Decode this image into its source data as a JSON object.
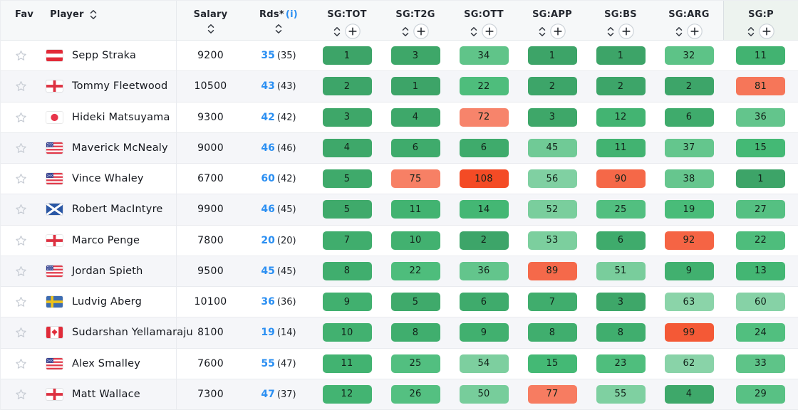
{
  "header": {
    "fav_label": "Fav",
    "player_label": "Player",
    "salary_label": "Salary",
    "rds_label": "Rds*",
    "rds_info": "(i)",
    "stat_columns": [
      "SG:TOT",
      "SG:T2G",
      "SG:OTT",
      "SG:APP",
      "SG:BS",
      "SG:ARG",
      "SG:P"
    ]
  },
  "icons": {
    "favorite": "star-outline",
    "sort": "up-down-chevrons",
    "add_column": "plus-circle",
    "info": "(i)-text-link"
  },
  "colors": {
    "link_blue": "#2b8ff2",
    "badge_green_dark": "#35aa63",
    "badge_green_light": "#8ed3ab",
    "badge_salmon": "#f98b76",
    "badge_red_strong": "#f44b26",
    "row_stripe": "#f5f6f9",
    "header_bg": "#f6f8f9",
    "last_header_tint": "#edf3ef"
  },
  "rows": [
    {
      "player": "Sepp Straka",
      "country": "austria",
      "salary": "9200",
      "rds": "35",
      "rds_alt": "(35)",
      "stats": [
        1,
        3,
        34,
        1,
        1,
        32,
        11
      ]
    },
    {
      "player": "Tommy Fleetwood",
      "country": "england",
      "salary": "10500",
      "rds": "43",
      "rds_alt": "(43)",
      "stats": [
        2,
        1,
        22,
        2,
        2,
        2,
        81
      ]
    },
    {
      "player": "Hideki Matsuyama",
      "country": "japan",
      "salary": "9300",
      "rds": "42",
      "rds_alt": "(42)",
      "stats": [
        3,
        4,
        72,
        3,
        12,
        6,
        36
      ]
    },
    {
      "player": "Maverick McNealy",
      "country": "usa",
      "salary": "9000",
      "rds": "46",
      "rds_alt": "(46)",
      "stats": [
        4,
        6,
        6,
        45,
        11,
        37,
        15
      ]
    },
    {
      "player": "Vince Whaley",
      "country": "usa",
      "salary": "6700",
      "rds": "60",
      "rds_alt": "(42)",
      "stats": [
        5,
        75,
        108,
        56,
        90,
        38,
        1
      ]
    },
    {
      "player": "Robert MacIntyre",
      "country": "scotland",
      "salary": "9900",
      "rds": "46",
      "rds_alt": "(45)",
      "stats": [
        5,
        11,
        14,
        52,
        25,
        19,
        27
      ]
    },
    {
      "player": "Marco Penge",
      "country": "england",
      "salary": "7800",
      "rds": "20",
      "rds_alt": "(20)",
      "stats": [
        7,
        10,
        2,
        53,
        6,
        92,
        22
      ]
    },
    {
      "player": "Jordan Spieth",
      "country": "usa",
      "salary": "9500",
      "rds": "45",
      "rds_alt": "(45)",
      "stats": [
        8,
        22,
        36,
        89,
        51,
        9,
        13
      ]
    },
    {
      "player": "Ludvig Aberg",
      "country": "sweden",
      "salary": "10100",
      "rds": "36",
      "rds_alt": "(36)",
      "stats": [
        9,
        5,
        6,
        7,
        3,
        63,
        60
      ]
    },
    {
      "player": "Sudarshan Yellamaraju",
      "country": "canada",
      "salary": "8100",
      "rds": "19",
      "rds_alt": "(14)",
      "stats": [
        10,
        8,
        9,
        8,
        8,
        99,
        24
      ]
    },
    {
      "player": "Alex Smalley",
      "country": "usa",
      "salary": "7600",
      "rds": "55",
      "rds_alt": "(47)",
      "stats": [
        11,
        25,
        54,
        15,
        23,
        62,
        33
      ]
    },
    {
      "player": "Matt Wallace",
      "country": "england",
      "salary": "7300",
      "rds": "47",
      "rds_alt": "(37)",
      "stats": [
        12,
        26,
        50,
        77,
        55,
        4,
        29
      ]
    }
  ]
}
